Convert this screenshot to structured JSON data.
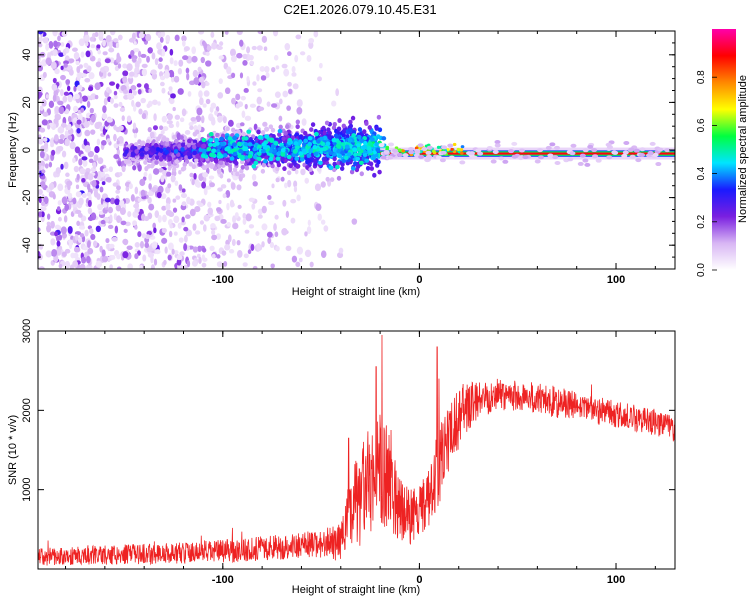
{
  "figure_title": "C2E1.2026.079.10.45.E31",
  "chart_data": [
    {
      "type": "heatmap",
      "title": "C2E1.2026.079.10.45.E31",
      "xlabel": "Height of straight line (km)",
      "ylabel": "Frequency (Hz)",
      "xlim": [
        -194,
        130
      ],
      "ylim": [
        -50,
        50
      ],
      "xticks": [
        "-100",
        "0",
        "100"
      ],
      "xtick_values": [
        -100,
        0,
        100
      ],
      "yticks": [
        "-40",
        "-20",
        "0",
        "20",
        "40"
      ],
      "ytick_values": [
        -40,
        -20,
        0,
        20,
        40
      ],
      "colorbar": {
        "label": "Normalized spectral amplitude",
        "range": [
          0,
          1
        ],
        "ticks": [
          "0.0",
          "0.2",
          "0.4",
          "0.6",
          "0.8"
        ],
        "tick_values": [
          0.0,
          0.2,
          0.4,
          0.6,
          0.8
        ],
        "colors": [
          "#ffffff",
          "#d8b6f4",
          "#7a1fe0",
          "#1a1aff",
          "#00e5ff",
          "#00ff40",
          "#ffff00",
          "#ff8800",
          "#ff0000",
          "#ff00aa"
        ]
      },
      "features": {
        "noise_region_x": [
          -194,
          -40
        ],
        "signal_band_x": [
          -150,
          -20
        ],
        "signal_band_frequency_hz": [
          -6,
          8
        ],
        "carrier_line_x": [
          -20,
          130
        ],
        "carrier_line_frequency_hz": -1.5
      }
    },
    {
      "type": "line",
      "title": "",
      "xlabel": "Height of straight line (km)",
      "ylabel": "SNR (10 * v/v)",
      "xlim": [
        -194,
        130
      ],
      "ylim": [
        0,
        3000
      ],
      "xticks": [
        "-100",
        "0",
        "100"
      ],
      "xtick_values": [
        -100,
        0,
        100
      ],
      "yticks": [
        "1000",
        "2000",
        "3000"
      ],
      "ytick_values": [
        1000,
        2000,
        3000
      ],
      "series": [
        {
          "name": "SNR",
          "color": "#ee2222",
          "envelope": {
            "x": [
              -194,
              -170,
              -140,
              -110,
              -90,
              -70,
              -50,
              -40,
              -35,
              -30,
              -25,
              -20,
              -15,
              -10,
              -5,
              0,
              5,
              10,
              15,
              20,
              25,
              30,
              40,
              50,
              60,
              70,
              80,
              90,
              100,
              110,
              120,
              130
            ],
            "mean": [
              150,
              170,
              190,
              210,
              240,
              280,
              320,
              340,
              700,
              900,
              1100,
              1300,
              1100,
              800,
              650,
              700,
              900,
              1300,
              1600,
              1900,
              2050,
              2150,
              2200,
              2180,
              2150,
              2100,
              2050,
              2000,
              1950,
              1900,
              1850,
              1750
            ],
            "noise": [
              110,
              120,
              130,
              140,
              150,
              160,
              180,
              250,
              500,
              650,
              700,
              750,
              600,
              450,
              350,
              350,
              400,
              500,
              450,
              380,
              300,
              250,
              200,
              200,
              200,
              200,
              190,
              180,
              170,
              170,
              170,
              160
            ]
          },
          "spikes": [
            {
              "x": -19,
              "y": 2950
            },
            {
              "x": -22,
              "y": 2550
            },
            {
              "x": 9,
              "y": 2800
            },
            {
              "x": 10,
              "y": 2400
            },
            {
              "x": -36,
              "y": 1650
            }
          ]
        }
      ]
    }
  ]
}
